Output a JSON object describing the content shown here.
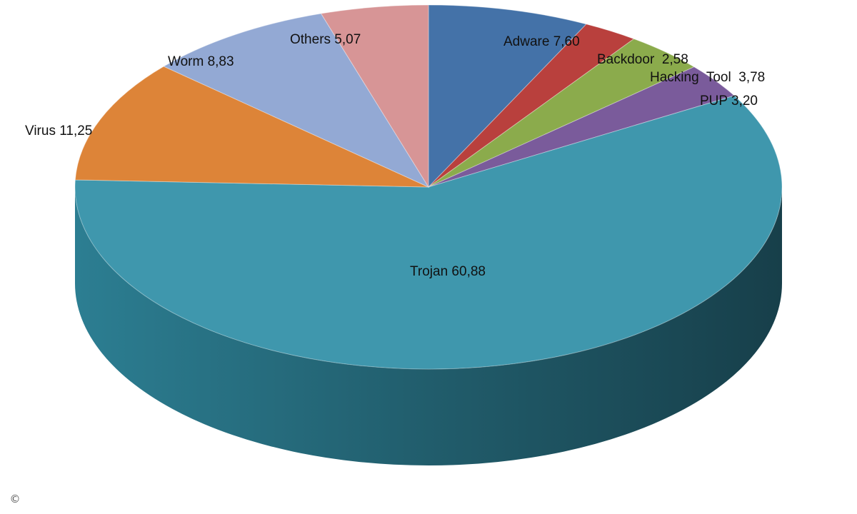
{
  "chart_data": {
    "type": "pie",
    "style": "3d",
    "title": "",
    "slices": [
      {
        "name": "Adware",
        "value": 7.6,
        "label": "Adware 7,60",
        "color": "#4472a8"
      },
      {
        "name": "Backdoor",
        "value": 2.58,
        "label": "Backdoor  2,58",
        "color": "#b9403d"
      },
      {
        "name": "Hacking Tool",
        "value": 3.78,
        "label": "Hacking  Tool  3,78",
        "color": "#8bab4c"
      },
      {
        "name": "PUP",
        "value": 3.2,
        "label": "PUP 3,20",
        "color": "#7a5b9b"
      },
      {
        "name": "Trojan",
        "value": 60.88,
        "label": "Trojan 60,88",
        "color": "#3f97ad"
      },
      {
        "name": "Virus",
        "value": 11.25,
        "label": "Virus 11,25",
        "color": "#dd8438"
      },
      {
        "name": "Worm",
        "value": 8.83,
        "label": "Worm 8,83",
        "color": "#93a9d4"
      },
      {
        "name": "Others",
        "value": 5.07,
        "label": "Others 5,07",
        "color": "#d79596"
      }
    ]
  },
  "footer": {
    "copyright_symbol": "©"
  }
}
